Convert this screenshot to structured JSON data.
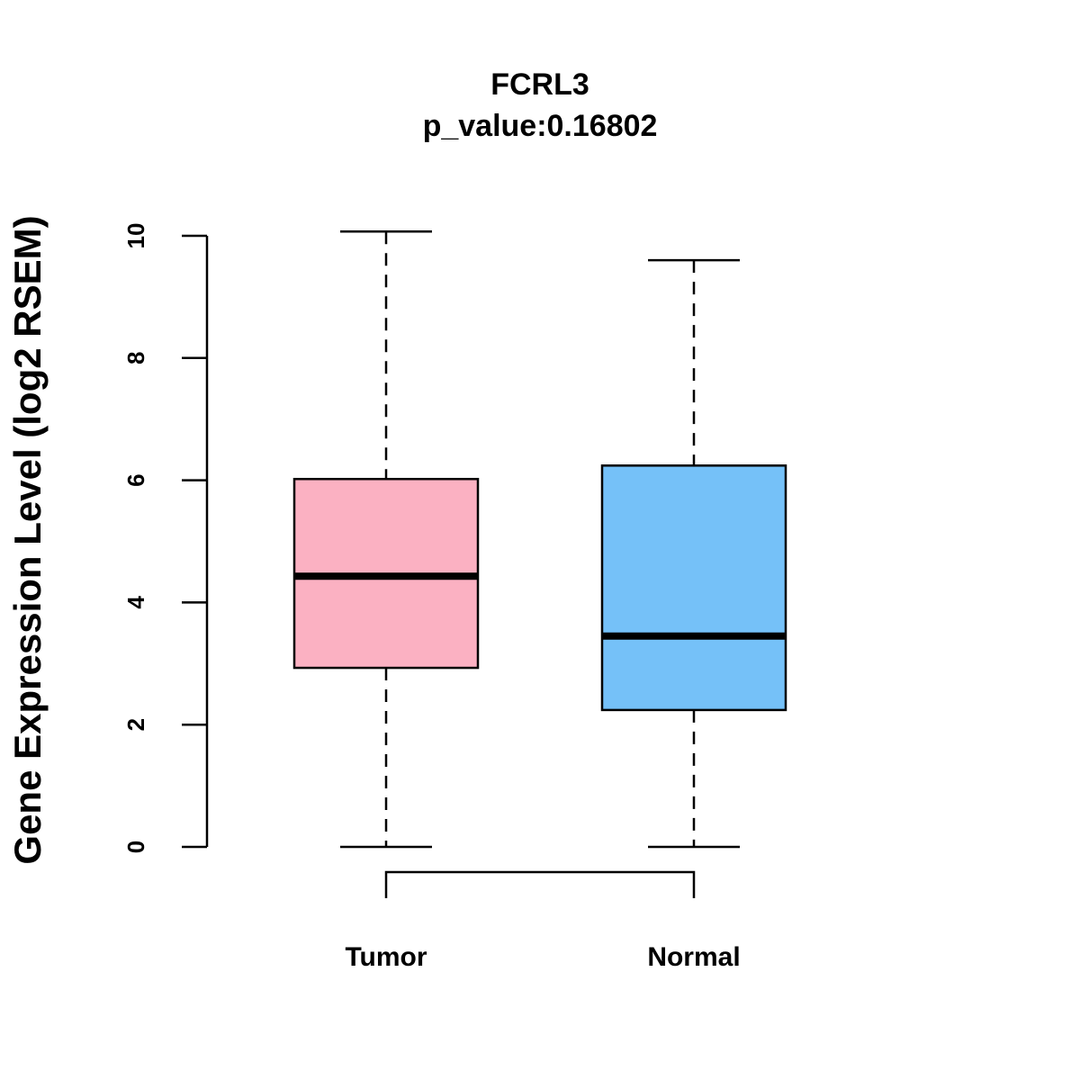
{
  "chart_data": {
    "type": "boxplot",
    "title": "FCRL3",
    "subtitle": "p_value:0.16802",
    "xlabel": "",
    "ylabel": "Gene Expression Level (log2 RSEM)",
    "ylim": [
      0,
      10
    ],
    "yticks": [
      "0",
      "2",
      "4",
      "6",
      "8",
      "10"
    ],
    "grid": false,
    "categories": [
      "Tumor",
      "Normal"
    ],
    "series": [
      {
        "name": "Tumor",
        "min": 0,
        "q1": 2.93,
        "median": 4.43,
        "q3": 6.02,
        "max": 10.07,
        "color": "#FBB1C2"
      },
      {
        "name": "Normal",
        "min": 0,
        "q1": 2.24,
        "median": 3.45,
        "q3": 6.24,
        "max": 9.6,
        "color": "#75C1F8"
      }
    ],
    "comparison_bracket": [
      "Tumor",
      "Normal"
    ]
  }
}
